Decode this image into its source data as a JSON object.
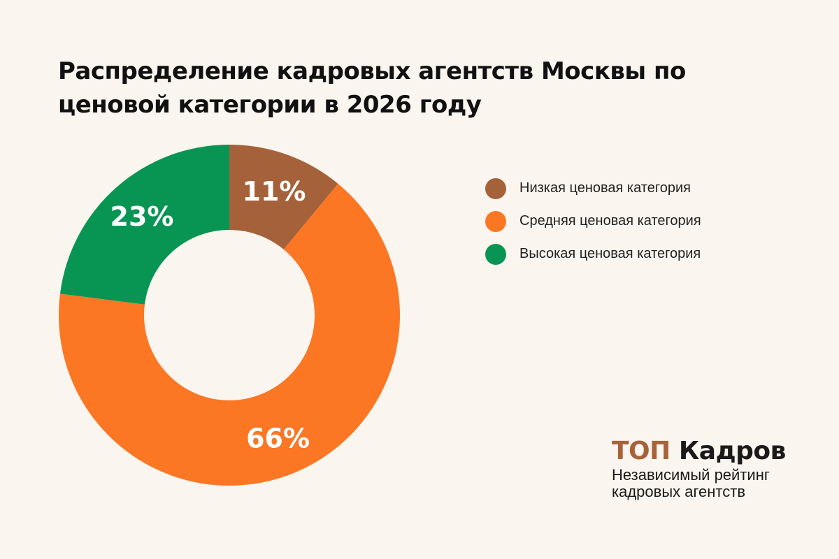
{
  "chart_data": {
    "type": "pie",
    "title": "Распределение кадровых агентств Москвы по ценовой категории в 2026 году",
    "donut": true,
    "categories": [
      "Низкая ценовая категория",
      "Средняя ценовая категория",
      "Высокая ценовая категория"
    ],
    "values": [
      11,
      66,
      23
    ],
    "value_labels": [
      "11%",
      "66%",
      "23%"
    ],
    "colors": [
      "#a5623a",
      "#fb7724",
      "#089553"
    ],
    "legend_position": "right"
  },
  "brand": {
    "name_part1": "ТОП",
    "name_part2": "Кадров",
    "subtitle_line1": "Независимый рейтинг",
    "subtitle_line2": "кадровых агентств"
  }
}
